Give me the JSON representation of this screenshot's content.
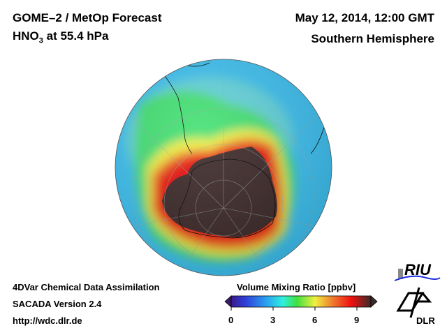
{
  "header": {
    "title": "GOME–2 / MetOp Forecast",
    "species": "HNO",
    "species_sub": "3",
    "level": " at 55.4 hPa",
    "datetime": "May 12, 2014, 12:00 GMT",
    "region": "Southern Hemisphere"
  },
  "footer": {
    "line1": "4DVar Chemical Data Assimilation",
    "line2": "SACADA Version 2.4",
    "line3": "http://wdc.dlr.de"
  },
  "colorbar": {
    "title": "Volume Mixing Ratio [ppbv]",
    "ticks": [
      "0",
      "3",
      "6",
      "9"
    ],
    "range": [
      0,
      10
    ],
    "colors": [
      "#3a1a8a",
      "#2f3fd8",
      "#2aa0f0",
      "#30f0e0",
      "#40e040",
      "#f0f040",
      "#f08030",
      "#f01010",
      "#7a2020",
      "#3a2a2a"
    ]
  },
  "logos": {
    "riu": "RIU",
    "dlr": "DLR"
  }
}
